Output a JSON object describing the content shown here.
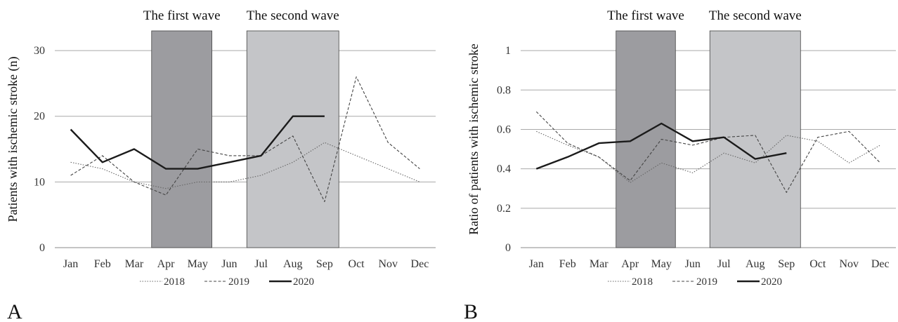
{
  "chart_data": [
    {
      "type": "line",
      "panel_label": "A",
      "ylabel": "Patients with ischemic stroke (n)",
      "ylim": [
        0,
        33
      ],
      "yticks": [
        "0",
        "10",
        "20",
        "30"
      ],
      "ytick_values": [
        0,
        10,
        20,
        30
      ],
      "categories": [
        "Jan",
        "Feb",
        "Mar",
        "Apr",
        "May",
        "Jun",
        "Jul",
        "Aug",
        "Sep",
        "Oct",
        "Nov",
        "Dec"
      ],
      "grid": true,
      "legend_position": "bottom",
      "shaded_regions": [
        {
          "label": "The first wave",
          "start": "Apr",
          "end": "May",
          "color": "#9c9ca0"
        },
        {
          "label": "The second wave",
          "start": "Jul",
          "end": "Sep",
          "color": "#c4c5c8"
        }
      ],
      "series": [
        {
          "name": "2018",
          "style": "dotted",
          "values": [
            13,
            12,
            10,
            9,
            10,
            10,
            11,
            13,
            16,
            14,
            12,
            10
          ]
        },
        {
          "name": "2019",
          "style": "dashed",
          "values": [
            11,
            14,
            10,
            8,
            15,
            14,
            14,
            17,
            7,
            26,
            16,
            12
          ]
        },
        {
          "name": "2020",
          "style": "solid",
          "values": [
            18,
            13,
            15,
            12,
            12,
            13,
            14,
            20,
            20,
            null,
            null,
            null
          ]
        }
      ]
    },
    {
      "type": "line",
      "panel_label": "B",
      "ylabel": "Ratio of patients with ischemic stroke",
      "ylim": [
        0,
        1.1
      ],
      "yticks": [
        "0",
        "0.2",
        "0.4",
        "0.6",
        "0.8",
        "1"
      ],
      "ytick_values": [
        0,
        0.2,
        0.4,
        0.6,
        0.8,
        1
      ],
      "categories": [
        "Jan",
        "Feb",
        "Mar",
        "Apr",
        "May",
        "Jun",
        "Jul",
        "Aug",
        "Sep",
        "Oct",
        "Nov",
        "Dec"
      ],
      "grid": true,
      "legend_position": "bottom",
      "shaded_regions": [
        {
          "label": "The first wave",
          "start": "Apr",
          "end": "May",
          "color": "#9c9ca0"
        },
        {
          "label": "The second wave",
          "start": "Jul",
          "end": "Sep",
          "color": "#c4c5c8"
        }
      ],
      "series": [
        {
          "name": "2018",
          "style": "dotted",
          "values": [
            0.59,
            0.52,
            0.46,
            0.33,
            0.43,
            0.38,
            0.48,
            0.43,
            0.57,
            0.54,
            0.43,
            0.52
          ]
        },
        {
          "name": "2019",
          "style": "dashed",
          "values": [
            0.69,
            0.53,
            0.46,
            0.34,
            0.55,
            0.52,
            0.56,
            0.57,
            0.28,
            0.56,
            0.59,
            0.43
          ]
        },
        {
          "name": "2020",
          "style": "solid",
          "values": [
            0.4,
            0.46,
            0.53,
            0.54,
            0.63,
            0.54,
            0.56,
            0.45,
            0.48,
            null,
            null,
            null
          ]
        }
      ]
    }
  ]
}
